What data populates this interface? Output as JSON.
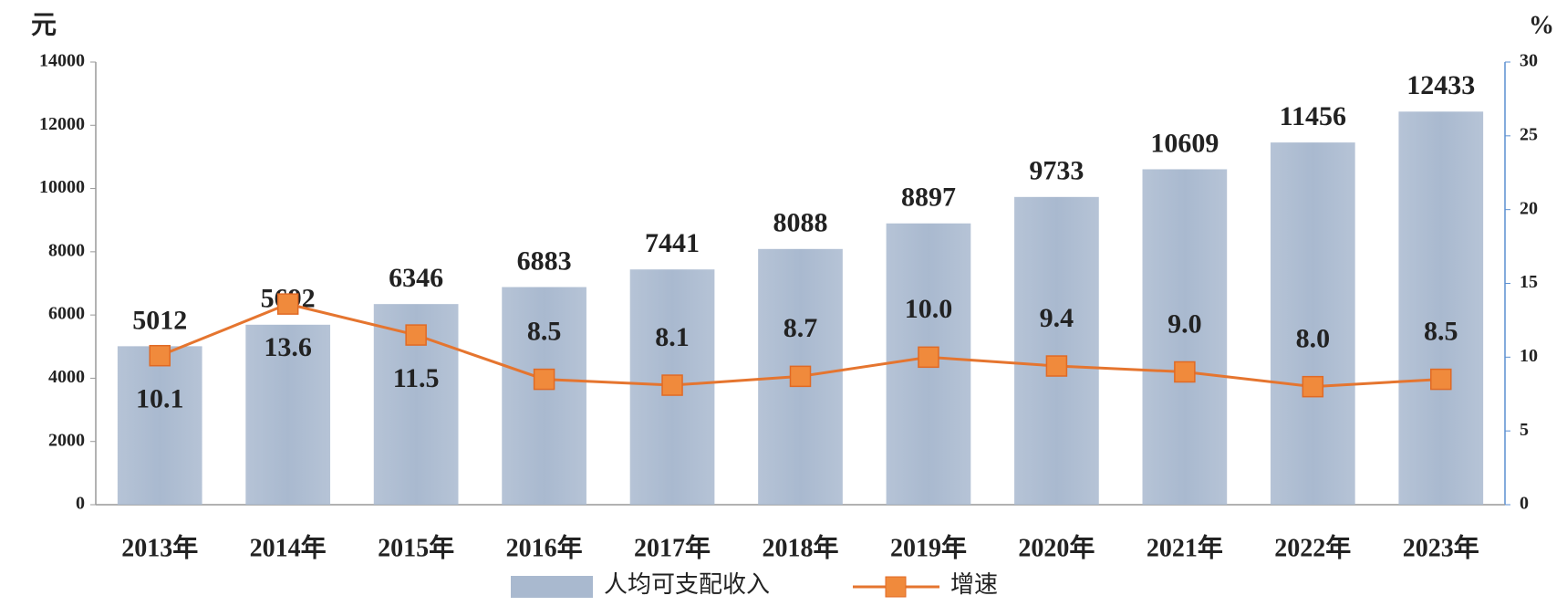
{
  "chart_data": {
    "type": "bar",
    "categories": [
      "2013年",
      "2014年",
      "2015年",
      "2016年",
      "2017年",
      "2018年",
      "2019年",
      "2020年",
      "2021年",
      "2022年",
      "2023年"
    ],
    "series": [
      {
        "name": "人均可支配收入",
        "color": "#a9b9cf",
        "values": [
          5012,
          5692,
          6346,
          6883,
          7441,
          8088,
          8897,
          9733,
          10609,
          11456,
          12433
        ]
      },
      {
        "name": "增速",
        "type": "line",
        "axis": "y2",
        "color": "#e5752f",
        "value_labels": [
          "10.1",
          "13.6",
          "11.5",
          "8.5",
          "8.1",
          "8.7",
          "10.0",
          "9.4",
          "9.0",
          "8.0",
          "8.5"
        ],
        "values": [
          10.1,
          13.6,
          11.5,
          8.5,
          8.1,
          8.7,
          10.0,
          9.4,
          9.0,
          8.0,
          8.5
        ]
      }
    ],
    "ylabel": "元",
    "y2label": "%",
    "ylim": [
      0,
      14000
    ],
    "yticks": [
      0,
      2000,
      4000,
      6000,
      8000,
      10000,
      12000,
      14000
    ],
    "y2lim": [
      0,
      30
    ],
    "y2ticks": [
      0,
      5,
      10,
      15,
      20,
      25,
      30
    ],
    "legend": "bottom"
  }
}
